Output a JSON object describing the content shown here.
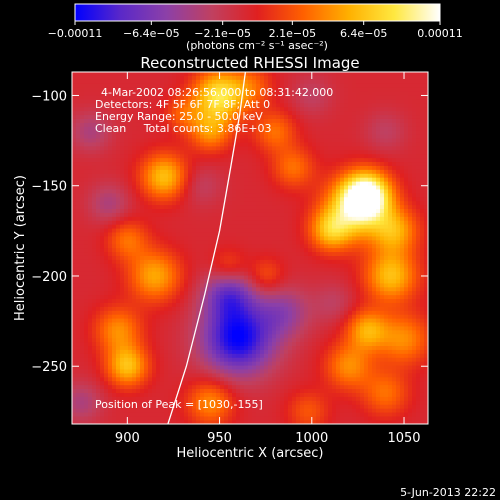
{
  "chart_data": {
    "type": "heatmap",
    "title": "Reconstructed RHESSI Image",
    "xlabel": "Heliocentric X (arcsec)",
    "ylabel": "Heliocentric Y (arcsec)",
    "xlim": [
      870,
      1063
    ],
    "ylim": [
      -282,
      -87
    ],
    "x_ticks": [
      900,
      950,
      1000,
      1050
    ],
    "x_tick_labels": [
      "900",
      "950",
      "1000",
      "1050"
    ],
    "y_ticks": [
      -100,
      -150,
      -200,
      -250
    ],
    "y_tick_labels": [
      "−100",
      "−150",
      "−200",
      "−250"
    ],
    "colorbar": {
      "range": [
        -0.00011,
        0.00011
      ],
      "ticks": [
        -0.00011,
        -6.4e-05,
        -2.1e-05,
        2.1e-05,
        6.4e-05,
        0.00011
      ],
      "tick_labels": [
        "−0.00011",
        "−6.4e−05",
        "−2.1e−05",
        "2.1e−05",
        "6.4e−05",
        "0.00011"
      ],
      "unit_text": "(photons cm⁻² s⁻¹ asec⁻²)",
      "colors": [
        "#0000ff",
        "#5a28c8",
        "#8c40a8",
        "#c04060",
        "#e02020",
        "#ff6000",
        "#ffb000",
        "#ffe840",
        "#ffffff"
      ]
    },
    "annotations": [
      "4-Mar-2002 08:26:56.000 to 08:31:42.000",
      "Detectors: 4F 5F 6F 7F 8F; Att 0",
      "Energy Range: 25.0 - 50.0 keV",
      "Clean     Total counts: 3.86E+03"
    ],
    "peak_label": "Position of Peak = [1030,-155]",
    "peak": [
      1030,
      -155
    ],
    "limb_curve": [
      [
        922,
        -282
      ],
      [
        932,
        -250
      ],
      [
        942,
        -210
      ],
      [
        950,
        -175
      ],
      [
        956,
        -140
      ],
      [
        961,
        -110
      ],
      [
        964,
        -87
      ]
    ],
    "image_blobs": [
      [
        1030,
        -155,
        0.00011,
        9
      ],
      [
        1023,
        -163,
        8e-05,
        12
      ],
      [
        1010,
        -175,
        6e-05,
        8
      ],
      [
        1045,
        -175,
        6e-05,
        9
      ],
      [
        1043,
        -200,
        7e-05,
        10
      ],
      [
        1050,
        -235,
        5e-05,
        10
      ],
      [
        1030,
        -230,
        6e-05,
        8
      ],
      [
        1020,
        -250,
        5e-05,
        9
      ],
      [
        1040,
        -265,
        4e-05,
        9
      ],
      [
        998,
        -275,
        3e-05,
        8
      ],
      [
        990,
        -140,
        4e-05,
        8
      ],
      [
        980,
        -120,
        4e-05,
        8
      ],
      [
        968,
        -95,
        3e-05,
        8
      ],
      [
        950,
        -100,
        9e-05,
        10
      ],
      [
        945,
        -120,
        5e-05,
        8
      ],
      [
        930,
        -110,
        3e-05,
        7
      ],
      [
        920,
        -145,
        7e-05,
        9
      ],
      [
        915,
        -200,
        6e-05,
        10
      ],
      [
        900,
        -180,
        4e-05,
        8
      ],
      [
        895,
        -230,
        5e-05,
        9
      ],
      [
        900,
        -250,
        7e-05,
        8
      ],
      [
        945,
        -270,
        5e-05,
        9
      ],
      [
        955,
        -195,
        3e-05,
        7
      ],
      [
        975,
        -200,
        3e-05,
        7
      ],
      [
        960,
        -235,
        -0.0001,
        14
      ],
      [
        955,
        -210,
        -6e-05,
        10
      ],
      [
        985,
        -220,
        -4e-05,
        10
      ],
      [
        880,
        -120,
        -3e-05,
        8
      ],
      [
        890,
        -160,
        -3e-05,
        8
      ],
      [
        940,
        -150,
        -2e-05,
        8
      ],
      [
        1000,
        -100,
        -2e-05,
        8
      ],
      [
        1040,
        -120,
        -2e-05,
        8
      ],
      [
        1012,
        -215,
        -2e-05,
        8
      ],
      [
        875,
        -270,
        -3e-05,
        8
      ]
    ]
  },
  "footer": {
    "timestamp": "5-Jun-2013 22:22"
  }
}
